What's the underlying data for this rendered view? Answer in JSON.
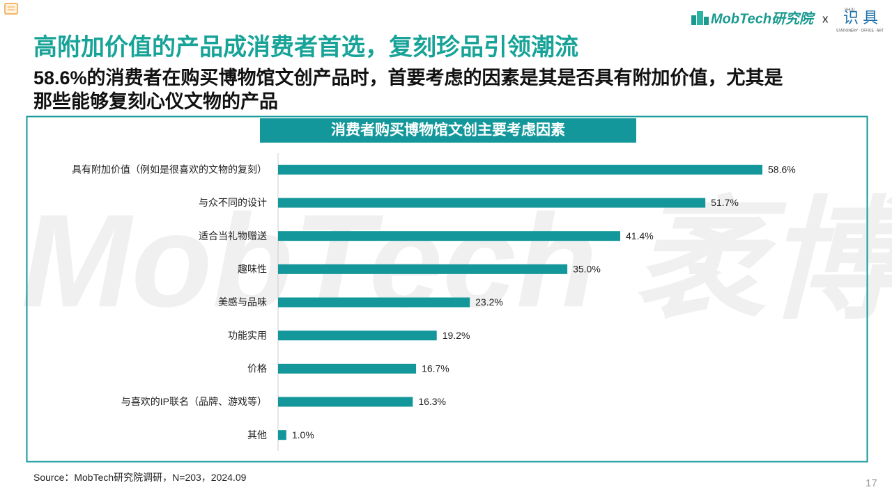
{
  "header": {
    "title": "高附加价值的产品成消费者首选，复刻珍品引领潮流",
    "subtitle_lines": [
      "58.6%的消费者在购买博物馆文创产品时，首要考虑的因素是其是否具有附加价值，尤其是",
      "那些能够复刻心仪文物的产品"
    ],
    "logo_left": "MobTech研究院",
    "separator": "x",
    "logo_right": "识 具",
    "logo_right_small": "SHIJU",
    "logo_right_tagline": "STATIONERY · OFFICE · ART"
  },
  "watermark": "MobTech 袤博",
  "chart_data": {
    "type": "bar",
    "orientation": "horizontal",
    "title": "消费者购买博物馆文创主要考虑因素",
    "categories": [
      "具有附加价值（例如是很喜欢的文物的复刻）",
      "与众不同的设计",
      "适合当礼物赠送",
      "趣味性",
      "美感与品味",
      "功能实用",
      "价格",
      "与喜欢的IP联名（品牌、游戏等）",
      "其他"
    ],
    "values": [
      58.6,
      51.7,
      41.4,
      35.0,
      23.2,
      19.2,
      16.7,
      16.3,
      1.0
    ],
    "value_labels": [
      "58.6%",
      "51.7%",
      "41.4%",
      "35.0%",
      "23.2%",
      "19.2%",
      "16.7%",
      "16.3%",
      "1.0%"
    ],
    "color": "#13979b"
  },
  "footer": {
    "source": "Source：MobTech研究院调研，N=203，2024.09",
    "page": "17"
  }
}
